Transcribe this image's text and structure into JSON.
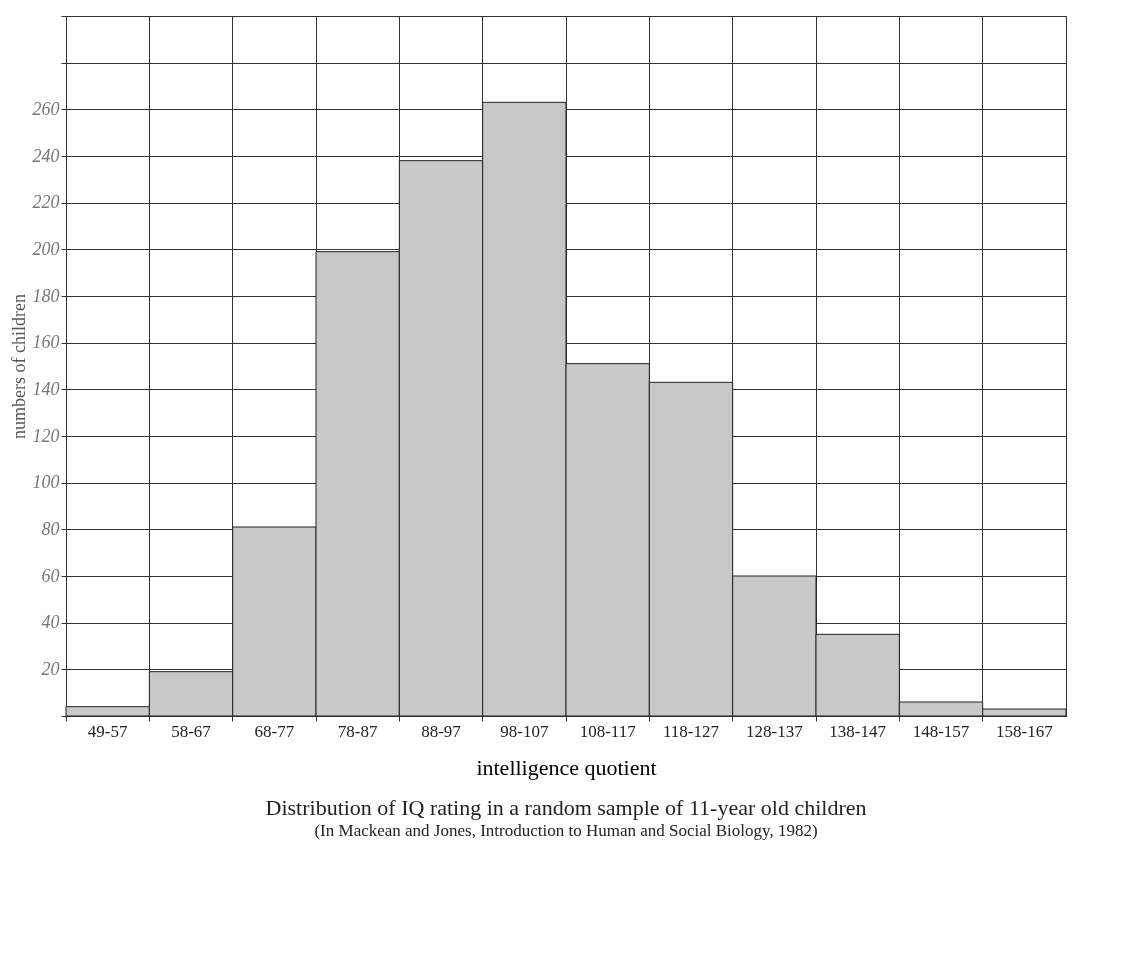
{
  "chart_data": {
    "type": "bar",
    "title": "Distribution of IQ rating in a random sample of 11-year old children",
    "xlabel": "intelligence quotient",
    "ylabel": "numbers of children",
    "categories": [
      "49-57",
      "58-67",
      "68-77",
      "78-87",
      "88-97",
      "98-107",
      "108-117",
      "118-127",
      "128-137",
      "138-147",
      "148-157",
      "158-167"
    ],
    "values": [
      4,
      19,
      81,
      199,
      238,
      263,
      151,
      143,
      60,
      35,
      6,
      3
    ],
    "color": "#c8c8c8",
    "ylim": [
      0,
      300
    ],
    "yticks": [
      {
        "value": 0,
        "label": null
      },
      20,
      40,
      60,
      80,
      100,
      120,
      140,
      160,
      180,
      200,
      220,
      240,
      260,
      {
        "value": 280,
        "label": null
      },
      {
        "value": 300,
        "label": null
      }
    ],
    "grid": true,
    "annotations": [
      "(In Mackean and Jones, Introduction to Human and Social Biology, 1982)"
    ]
  }
}
